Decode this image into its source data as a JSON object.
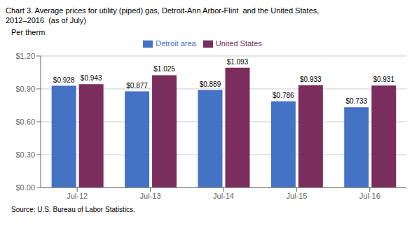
{
  "chart_data": {
    "type": "bar",
    "title": "Chart 3. Average prices for utility (piped) gas, Detroit-Ann Arbor-Flint  and the United States,\n2012–2016  (as of July)",
    "ylabel": "Per therm",
    "source": "Source: U.S. Bureau of Labor Statistics.",
    "categories": [
      "Jul-12",
      "Jul-13",
      "Jul-14",
      "Jul-15",
      "Jul-16"
    ],
    "series": [
      {
        "name": "Detroit area",
        "color": "#4472C4",
        "values": [
          0.928,
          0.877,
          0.889,
          0.786,
          0.733
        ],
        "value_labels": [
          "$0.928",
          "$0.877",
          "$0.889",
          "$0.786",
          "$0.733"
        ]
      },
      {
        "name": "United States",
        "color": "#7B2D5E",
        "values": [
          0.943,
          1.025,
          1.093,
          0.933,
          0.931
        ],
        "value_labels": [
          "$0.943",
          "$1.025",
          "$1.093",
          "$0.933",
          "$0.931"
        ]
      }
    ],
    "ylim": [
      0.0,
      1.2
    ],
    "yticks": [
      {
        "value": 0.0,
        "label": "$0.00"
      },
      {
        "value": 0.3,
        "label": "$0.30"
      },
      {
        "value": 0.6,
        "label": "$0.60"
      },
      {
        "value": 0.9,
        "label": "$0.90"
      },
      {
        "value": 1.2,
        "label": "$1.20"
      }
    ],
    "grid": true,
    "legend": "top",
    "data_labels": true
  }
}
